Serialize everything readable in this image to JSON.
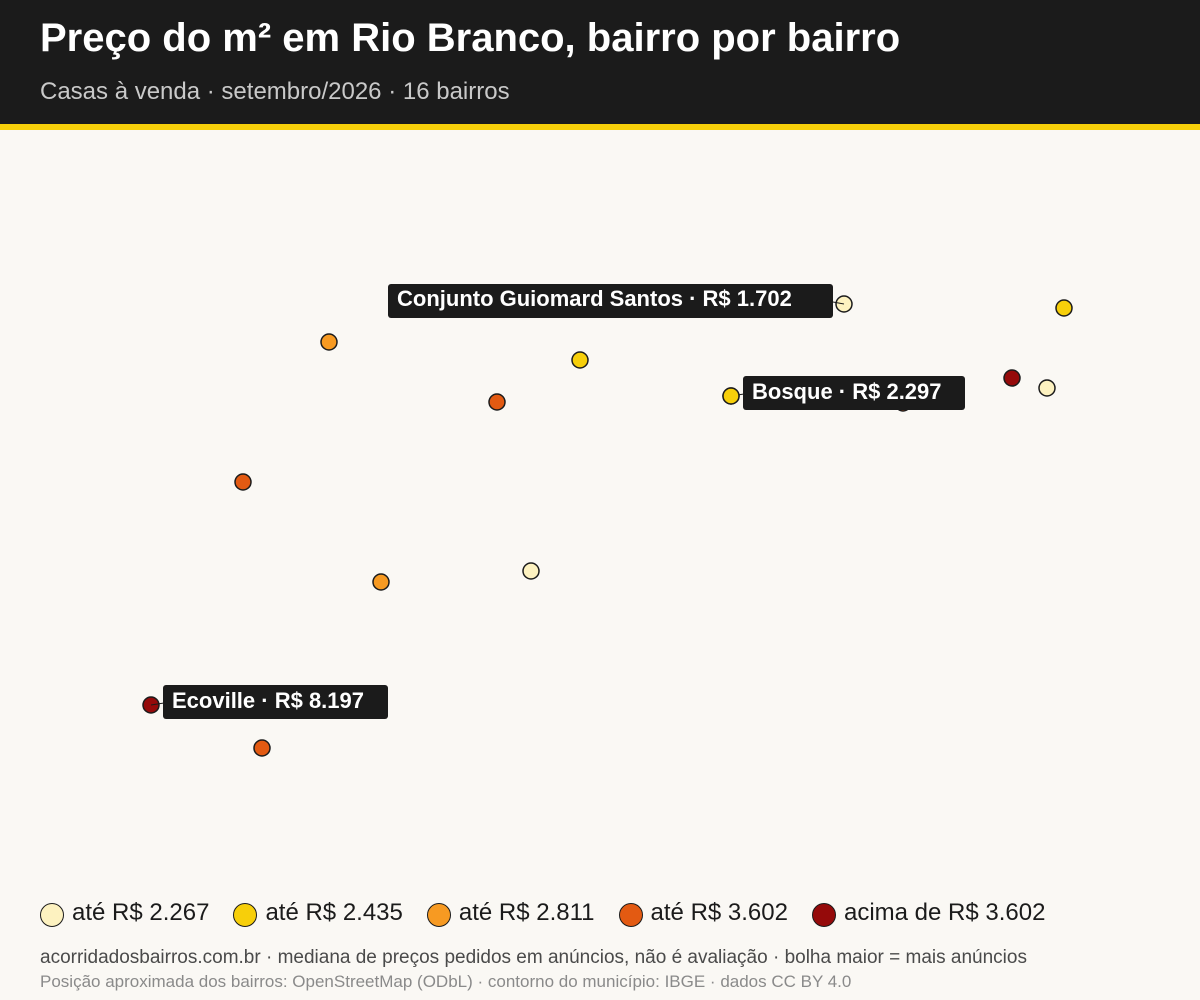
{
  "header": {
    "title": "Preço do m² em Rio Branco, bairro por bairro",
    "subtitle": "Casas à venda · setembro/2026 · 16 bairros"
  },
  "colors": {
    "header_bg": "#1b1b1b",
    "accent": "#f7cf0a",
    "background": "#faf8f4",
    "bin_1": "#fdf2c0",
    "bin_2": "#f7cf0a",
    "bin_3": "#f79a22",
    "bin_4": "#e35a12",
    "bin_5": "#950a0a"
  },
  "map": {
    "points": [
      {
        "bin": 1,
        "label": "Conjunto Guiomard Santos · R$ 1.702"
      },
      {
        "bin": 2
      },
      {
        "bin": 3
      },
      {
        "bin": 2
      },
      {
        "bin": 4
      },
      {
        "bin": 5
      },
      {
        "bin": 1
      },
      {
        "bin": 4
      },
      {
        "bin": 2,
        "label": "Bosque · R$ 2.297"
      },
      {
        "bin": 4
      },
      {
        "bin": 3
      },
      {
        "bin": 1
      },
      {
        "bin": 5,
        "label": "Ecoville · R$ 8.197"
      },
      {
        "bin": 4
      },
      {
        "bin": 3
      },
      {
        "bin": 1
      }
    ]
  },
  "legend": {
    "items": [
      {
        "label": "até R$ 2.267",
        "color": "#fdf2c0"
      },
      {
        "label": "até R$ 2.435",
        "color": "#f7cf0a"
      },
      {
        "label": "até R$ 2.811",
        "color": "#f79a22"
      },
      {
        "label": "até R$ 3.602",
        "color": "#e35a12"
      },
      {
        "label": "acima de R$ 3.602",
        "color": "#950a0a"
      }
    ]
  },
  "footer": {
    "source": "acorridadosbairros.com.br · mediana de preços pedidos em anúncios, não é avaliação · bolha maior = mais anúncios",
    "credits": "Posição aproximada dos bairros: OpenStreetMap (ODbL) · contorno do município: IBGE · dados CC BY 4.0"
  }
}
